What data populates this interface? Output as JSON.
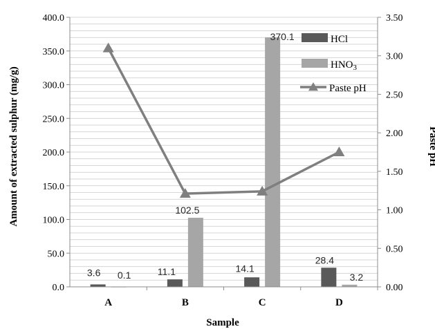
{
  "chart_data": {
    "type": "bar",
    "categories": [
      "A",
      "B",
      "C",
      "D"
    ],
    "xlabel": "Sample",
    "ylabel": "Amount of extracted sulphur (mg/g)",
    "y2label": "Paste pH",
    "ylim": [
      0,
      400
    ],
    "y2lim": [
      0,
      3.5
    ],
    "yticks": [
      "0.0",
      "50.0",
      "100.0",
      "150.0",
      "200.0",
      "250.0",
      "300.0",
      "350.0",
      "400.0"
    ],
    "y2ticks": [
      "0.00",
      "0.50",
      "1.00",
      "1.50",
      "2.00",
      "2.50",
      "3.00",
      "3.50"
    ],
    "grid": true,
    "legend_position": "top-right",
    "series": [
      {
        "name": "HCl",
        "kind": "bar",
        "axis": "left",
        "color": "#595959",
        "values": [
          3.6,
          11.1,
          14.1,
          28.4
        ],
        "labels": [
          "3.6",
          "11.1",
          "14.1",
          "28.4"
        ]
      },
      {
        "name": "HNO3",
        "name_main": "HNO",
        "name_sub": "3",
        "kind": "bar",
        "axis": "left",
        "color": "#a6a6a6",
        "values": [
          0.1,
          102.5,
          370.1,
          3.2
        ],
        "labels": [
          "0.1",
          "102.5",
          "370.1",
          "3.2"
        ]
      },
      {
        "name": "Paste pH",
        "kind": "line",
        "axis": "right",
        "color": "#7f7f7f",
        "marker": "triangle",
        "values": [
          3.1,
          1.21,
          1.24,
          1.75
        ]
      }
    ]
  }
}
